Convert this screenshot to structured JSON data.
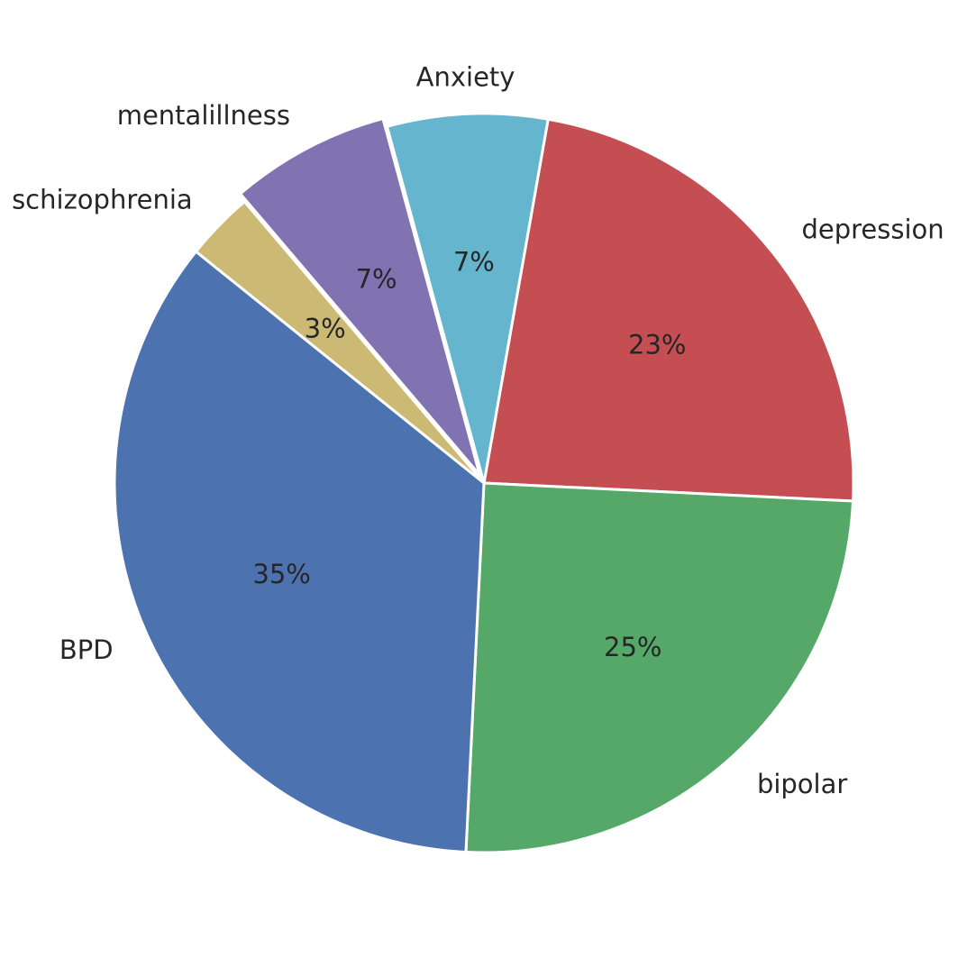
{
  "chart_data": {
    "type": "pie",
    "labels": [
      "depression",
      "bipolar",
      "BPD",
      "schizophrenia",
      "mentalillness",
      "Anxiety"
    ],
    "values": [
      23,
      25,
      35,
      3,
      7,
      7
    ],
    "autopct_labels": [
      "23%",
      "25%",
      "35%",
      "3%",
      "7%",
      "7%"
    ],
    "colors": [
      "#c44e52",
      "#55a868",
      "#4c72b0",
      "#ccb974",
      "#8172b2",
      "#64b5cd"
    ],
    "exploded": [
      "mentalillness"
    ],
    "legend": false,
    "title": ""
  }
}
